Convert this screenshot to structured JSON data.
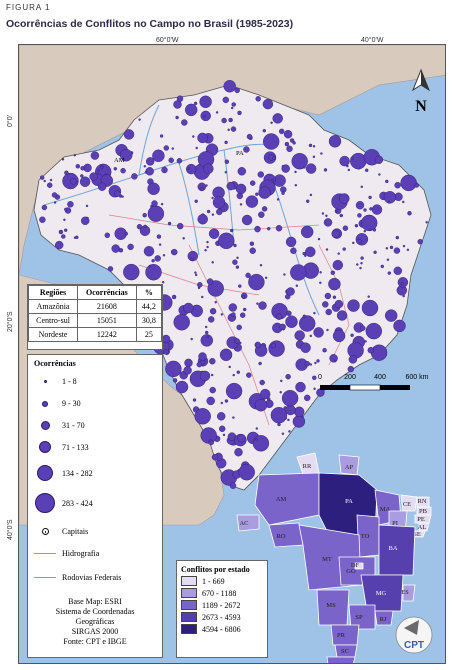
{
  "figure_label": "FIGURA 1",
  "title": "Ocorrências de Conflitos no Campo no Brasil (1985-2023)",
  "coordinates": {
    "lon_60": "60°0'W",
    "lon_40": "40°0'W",
    "lat_0": "0°0'",
    "lat_20": "20°0'S",
    "lat_40": "40°0'S"
  },
  "map_labels": {
    "north": "N",
    "am": "AM",
    "pa": "PA"
  },
  "regions_table": {
    "headers": [
      "Regiões",
      "Ocorrências",
      "%"
    ],
    "rows": [
      [
        "Amazônia",
        "21608",
        "44,2"
      ],
      [
        "Centro-sul",
        "15051",
        "30,8"
      ],
      [
        "Nordeste",
        "12242",
        "25"
      ]
    ]
  },
  "occurrence_legend": {
    "title": "Ocorrências",
    "classes": [
      "1 - 8",
      "9 - 30",
      "31 - 70",
      "71 - 133",
      "134 - 282",
      "283 - 424"
    ],
    "capitais": "Capitais",
    "hidrografia": "Hidrografia",
    "rodovias": "Rodovias Federais"
  },
  "base_map": [
    "Base Map: ESRI",
    "Sistema de Coordenadas",
    "Geográficas",
    "SIRGAS 2000",
    "Fonte: CPT e IBGE"
  ],
  "scale_bar": {
    "ticks": [
      "0",
      "200",
      "400",
      "600 km"
    ]
  },
  "state_legend": {
    "title": "Conflitos por estado",
    "classes": [
      "1 - 669",
      "670 - 1188",
      "1189 - 2672",
      "2673 - 4593",
      "4594 - 6806"
    ],
    "colors": [
      "#e4dcf2",
      "#a99de0",
      "#7a63c9",
      "#5640ad",
      "#2d1f7e"
    ]
  },
  "states": [
    "RR",
    "AP",
    "AM",
    "PA",
    "MA",
    "CE",
    "RN",
    "PB",
    "PE",
    "AL",
    "SE",
    "PI",
    "AC",
    "RO",
    "TO",
    "BA",
    "MT",
    "GO",
    "DF",
    "MG",
    "ES",
    "MS",
    "SP",
    "RJ",
    "PR",
    "SC",
    "RS"
  ],
  "logo": "CPT",
  "colors": {
    "ocean": "#9ec3e6",
    "brazil": "#eeeaf0",
    "neighbors": "#d9cabe",
    "dots": "#5a3fb5",
    "dots_stroke": "#2a1a6a"
  }
}
